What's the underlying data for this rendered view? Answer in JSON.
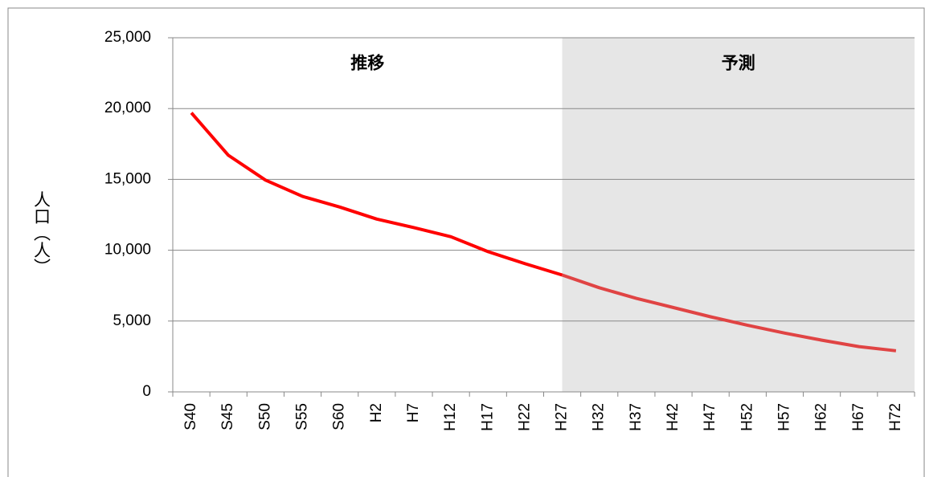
{
  "chart_data": {
    "type": "line",
    "y_label": "人口（人）",
    "annotations": [
      {
        "text": "推移"
      },
      {
        "text": "予測"
      }
    ],
    "categories": [
      "S40",
      "S45",
      "S50",
      "S55",
      "S60",
      "H2",
      "H7",
      "H12",
      "H17",
      "H22",
      "H27",
      "H32",
      "H37",
      "H42",
      "H47",
      "H52",
      "H57",
      "H62",
      "H67",
      "H72"
    ],
    "series": [
      {
        "name": "推移",
        "color": "#ff0000",
        "values": [
          19700,
          16700,
          14950,
          13800,
          13050,
          12200,
          11600,
          10950,
          9900,
          9050,
          8250,
          null,
          null,
          null,
          null,
          null,
          null,
          null,
          null,
          null
        ]
      },
      {
        "name": "予測",
        "color": "#e04444",
        "values": [
          null,
          null,
          null,
          null,
          null,
          null,
          null,
          null,
          null,
          null,
          8250,
          7350,
          6600,
          5950,
          5300,
          4700,
          4150,
          3650,
          3200,
          2900
        ]
      }
    ],
    "ylim": [
      0,
      25000
    ],
    "yticks": [
      0,
      {
        "value": 5000,
        "label": "5,000"
      },
      {
        "value": 10000,
        "label": "10,000"
      },
      {
        "value": 15000,
        "label": "15,000"
      },
      {
        "value": 20000,
        "label": "20,000"
      },
      {
        "value": 25000,
        "label": "25,000"
      }
    ],
    "grid": true,
    "shade_color": "#e6e6e6"
  }
}
